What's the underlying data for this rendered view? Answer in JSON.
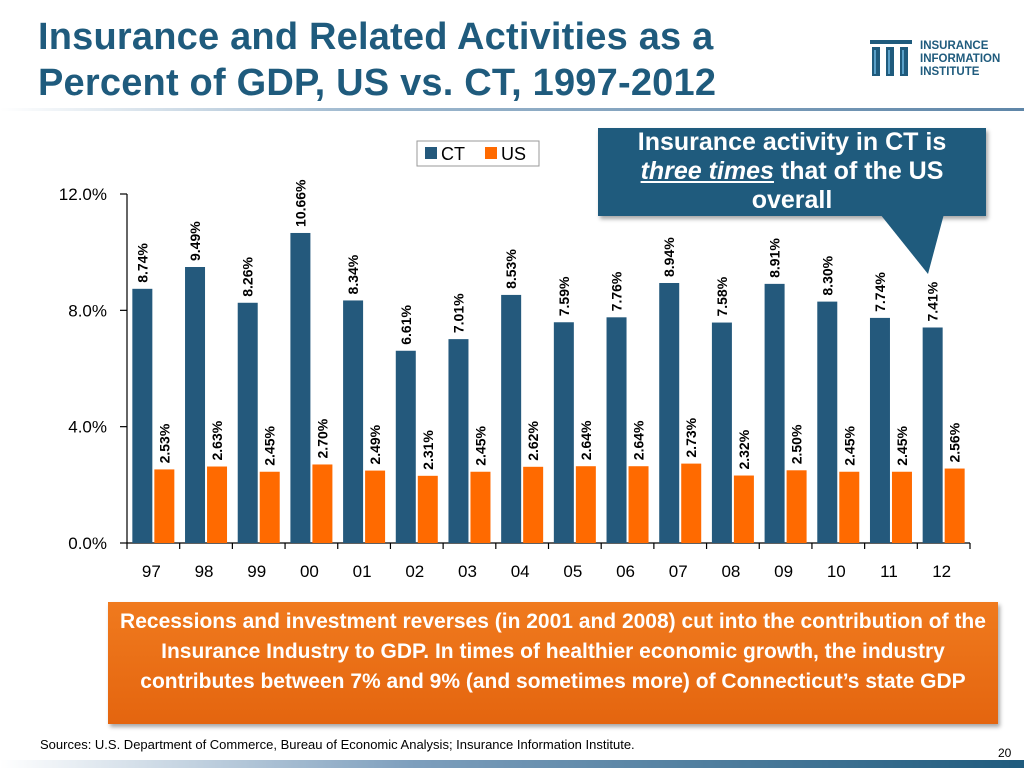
{
  "slide": {
    "title_line1": "Insurance and Related Activities as a",
    "title_line2": "Percent of GDP, US vs. CT, 1997-2012",
    "logo": {
      "line1": "INSURANCE",
      "line2": "INFORMATION",
      "line3": "INSTITUTE"
    },
    "callout": {
      "line1": "Insurance activity in CT is",
      "line2_em": "three times",
      "line2_rest": " that of the US",
      "line3": "overall"
    },
    "note": "Recessions and investment reverses (in 2001 and 2008) cut into the contribution of the Insurance Industry to GDP. In times of healthier economic growth, the industry contributes between 7% and 9% (and sometimes more) of Connecticut’s state GDP",
    "source": "Sources: U.S. Department of Commerce, Bureau of Economic Analysis; Insurance Information Institute.",
    "page_number": "20"
  },
  "colors": {
    "ct": "#24597c",
    "us": "#ff6a00",
    "title": "#1f5b7d"
  },
  "chart_data": {
    "type": "bar",
    "title": "Insurance and Related Activities as a Percent of GDP, US vs. CT, 1997-2012",
    "categories": [
      "97",
      "98",
      "99",
      "00",
      "01",
      "02",
      "03",
      "04",
      "05",
      "06",
      "07",
      "08",
      "09",
      "10",
      "11",
      "12"
    ],
    "series": [
      {
        "name": "CT",
        "values": [
          8.74,
          9.49,
          8.26,
          10.66,
          8.34,
          6.61,
          7.01,
          8.53,
          7.59,
          7.76,
          8.94,
          7.58,
          8.91,
          8.3,
          7.74,
          7.41
        ],
        "labels": [
          "8.74%",
          "9.49%",
          "8.26%",
          "10.66%",
          "8.34%",
          "6.61%",
          "7.01%",
          "8.53%",
          "7.59%",
          "7.76%",
          "8.94%",
          "7.58%",
          "8.91%",
          "8.30%",
          "7.74%",
          "7.41%"
        ]
      },
      {
        "name": "US",
        "values": [
          2.53,
          2.63,
          2.45,
          2.7,
          2.49,
          2.31,
          2.45,
          2.62,
          2.64,
          2.64,
          2.73,
          2.32,
          2.5,
          2.45,
          2.45,
          2.56
        ],
        "labels": [
          "2.53%",
          "2.63%",
          "2.45%",
          "2.70%",
          "2.49%",
          "2.31%",
          "2.45%",
          "2.62%",
          "2.64%",
          "2.64%",
          "2.73%",
          "2.32%",
          "2.50%",
          "2.45%",
          "2.45%",
          "2.56%"
        ]
      }
    ],
    "yticks": [
      0,
      4,
      8,
      12
    ],
    "ytick_labels": [
      "0.0%",
      "4.0%",
      "8.0%",
      "12.0%"
    ],
    "ylim": [
      0,
      12
    ],
    "xlabel": "",
    "ylabel": "",
    "legend": [
      "CT",
      "US"
    ],
    "legend_position": "top-center",
    "grid": false
  }
}
